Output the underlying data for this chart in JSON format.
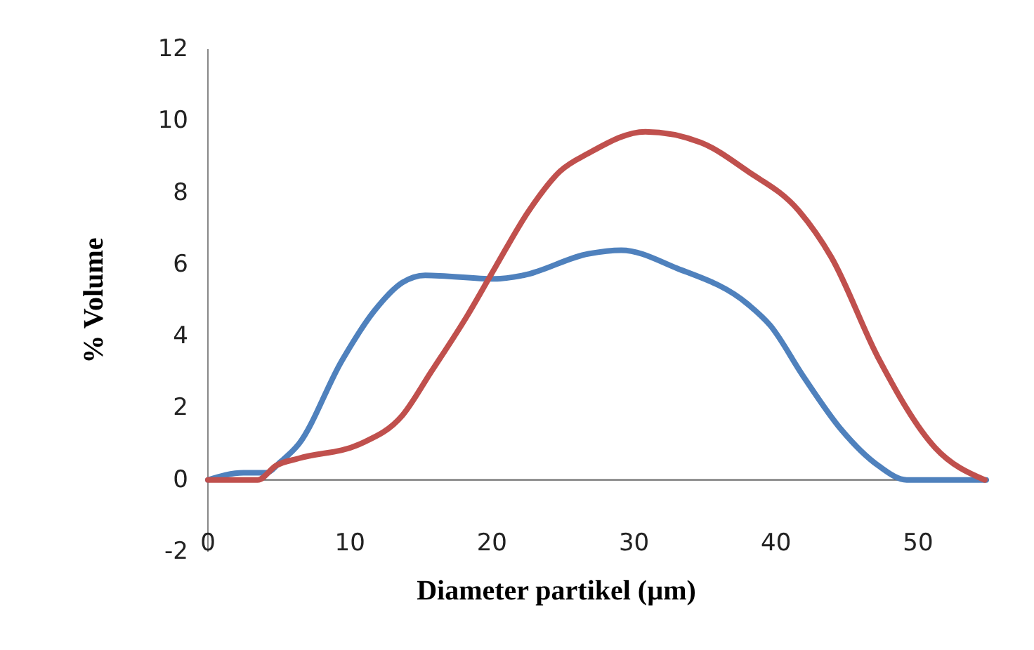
{
  "chart_data": {
    "type": "line",
    "xlabel": "Diameter partikel (µm)",
    "ylabel": "% Volume",
    "xlim": [
      0,
      55
    ],
    "ylim": [
      -2,
      12
    ],
    "xticks": [
      0,
      10,
      20,
      30,
      40,
      50
    ],
    "yticks": [
      -2,
      0,
      2,
      4,
      6,
      8,
      10,
      12
    ],
    "marker": "none",
    "series": [
      {
        "color": "#4f81bd",
        "x": [
          0,
          2.5,
          4.1,
          5.1,
          6.4,
          9.4,
          11.7,
          13.7,
          15.3,
          20.2,
          22.2,
          26.8,
          29.1,
          33,
          38,
          39.6,
          41.9,
          44.6,
          47.2,
          49.2,
          54.8
        ],
        "values": [
          0,
          0.2,
          0.2,
          0.5,
          1.0,
          3.3,
          4.7,
          5.5,
          5.7,
          5.6,
          5.7,
          6.3,
          6.4,
          5.9,
          4.9,
          4.3,
          2.9,
          1.4,
          0.4,
          0,
          0
        ]
      },
      {
        "color": "#c0504d",
        "x": [
          0,
          3.5,
          4.8,
          6.4,
          10.7,
          13.7,
          15.7,
          18.3,
          20.2,
          22.6,
          24.8,
          26.8,
          30.8,
          34.7,
          38,
          41.6,
          43.9,
          47.2,
          51.2,
          54.7
        ],
        "values": [
          0,
          0,
          0.4,
          0.6,
          1.0,
          1.8,
          3.0,
          4.6,
          5.9,
          7.5,
          8.6,
          9.1,
          9.7,
          9.4,
          8.6,
          7.5,
          6.2,
          3.4,
          0.9,
          0
        ]
      }
    ]
  }
}
